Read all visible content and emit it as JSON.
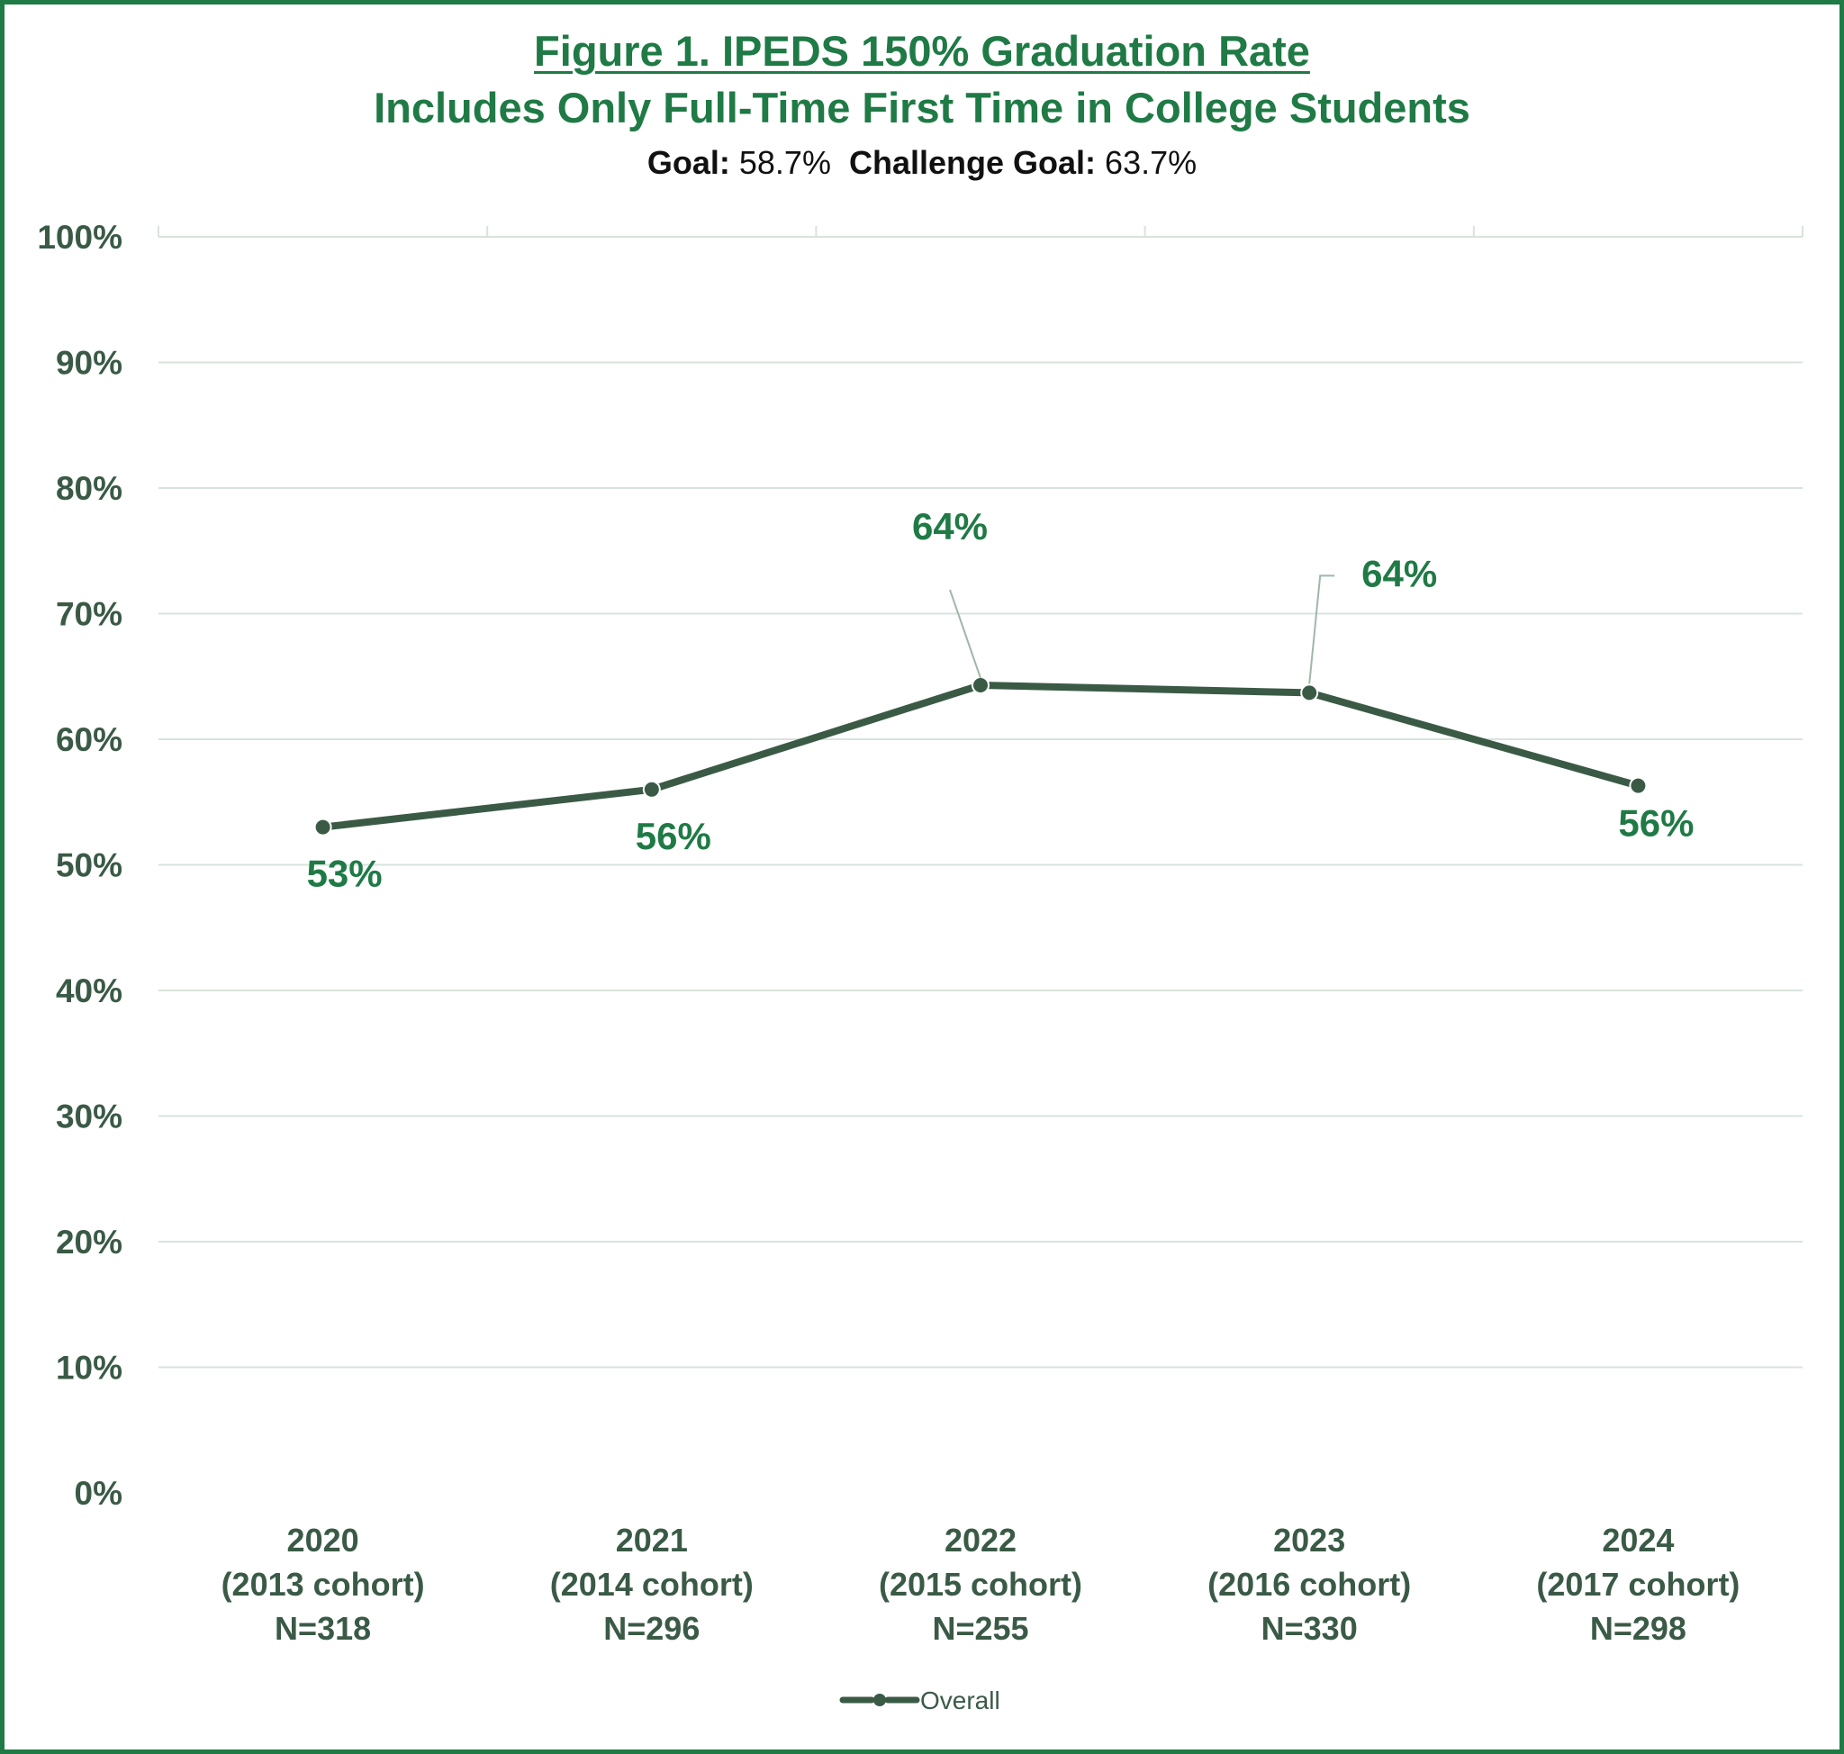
{
  "header": {
    "title": "Figure 1. IPEDS 150% Graduation Rate",
    "subtitle": "Includes Only Full-Time First Time in College Students",
    "goal_label": "Goal:",
    "goal_value": "58.7%",
    "challenge_label": "Challenge Goal:",
    "challenge_value": "63.7%"
  },
  "colors": {
    "accent": "#1f7a45",
    "line": "#3a5a46",
    "grid": "#d9e3dc"
  },
  "chart_data": {
    "type": "line",
    "categories": [
      [
        "2020",
        "(2013 cohort)",
        "N=318"
      ],
      [
        "2021",
        "(2014 cohort)",
        "N=296"
      ],
      [
        "2022",
        "(2015 cohort)",
        "N=255"
      ],
      [
        "2023",
        "(2016 cohort)",
        "N=330"
      ],
      [
        "2024",
        "(2017 cohort)",
        "N=298"
      ]
    ],
    "series": [
      {
        "name": "Overall",
        "values": [
          53.0,
          56.0,
          64.3,
          63.7,
          56.3
        ],
        "data_labels": [
          "53%",
          "56%",
          "64%",
          "64%",
          "56%"
        ]
      }
    ],
    "y_ticks": [
      "0%",
      "10%",
      "20%",
      "30%",
      "40%",
      "50%",
      "60%",
      "70%",
      "80%",
      "90%",
      "100%"
    ],
    "ylim": [
      0,
      100
    ],
    "grid": true,
    "legend_position": "bottom"
  }
}
